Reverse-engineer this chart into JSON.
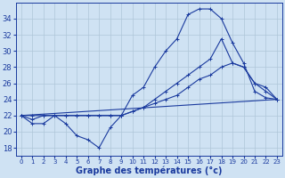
{
  "bg_color": "#cfe2f3",
  "grid_color": "#aec6d8",
  "line_color": "#1a3a9e",
  "xlabel": "Graphe des températures (°c)",
  "xlabel_fontsize": 7,
  "tick_fontsize": 6,
  "yticks": [
    18,
    20,
    22,
    24,
    26,
    28,
    30,
    32,
    34
  ],
  "xticks": [
    0,
    1,
    2,
    3,
    4,
    5,
    6,
    7,
    8,
    9,
    10,
    11,
    12,
    13,
    14,
    15,
    16,
    17,
    18,
    19,
    20,
    21,
    22,
    23
  ],
  "ylim": [
    17.0,
    36.0
  ],
  "xlim": [
    -0.5,
    23.5
  ],
  "lines": [
    {
      "x": [
        0,
        1,
        2,
        3,
        4,
        5,
        6,
        7,
        8,
        9,
        10,
        11,
        12,
        13,
        14,
        15,
        16,
        17,
        18,
        19,
        20,
        21,
        22,
        23
      ],
      "y": [
        22,
        21,
        21,
        22,
        21,
        19.5,
        19,
        18,
        20.5,
        22,
        24.5,
        25.5,
        28,
        30,
        31.5,
        34.5,
        35.2,
        35.2,
        34,
        31,
        28.5,
        25,
        24.2,
        24
      ]
    },
    {
      "x": [
        0,
        1,
        2,
        3,
        4,
        5,
        6,
        7,
        8,
        9,
        10,
        11,
        12,
        13,
        14,
        15,
        16,
        17,
        18,
        19,
        20,
        21,
        22,
        23
      ],
      "y": [
        22,
        21.5,
        22,
        22,
        22,
        22,
        22,
        22,
        22,
        22,
        22.5,
        23,
        24,
        25,
        26,
        27,
        28,
        29,
        31.5,
        28.5,
        28,
        26,
        25.5,
        24
      ]
    },
    {
      "x": [
        0,
        1,
        2,
        3,
        4,
        5,
        6,
        7,
        8,
        9,
        10,
        11,
        12,
        13,
        14,
        15,
        16,
        17,
        18,
        19,
        20,
        21,
        22,
        23
      ],
      "y": [
        22,
        22,
        22,
        22,
        22,
        22,
        22,
        22,
        22,
        22,
        22.5,
        23,
        23.5,
        24,
        24.5,
        25.5,
        26.5,
        27,
        28,
        28.5,
        28,
        26,
        25,
        24
      ]
    },
    {
      "x": [
        0,
        23
      ],
      "y": [
        22,
        24
      ]
    }
  ]
}
